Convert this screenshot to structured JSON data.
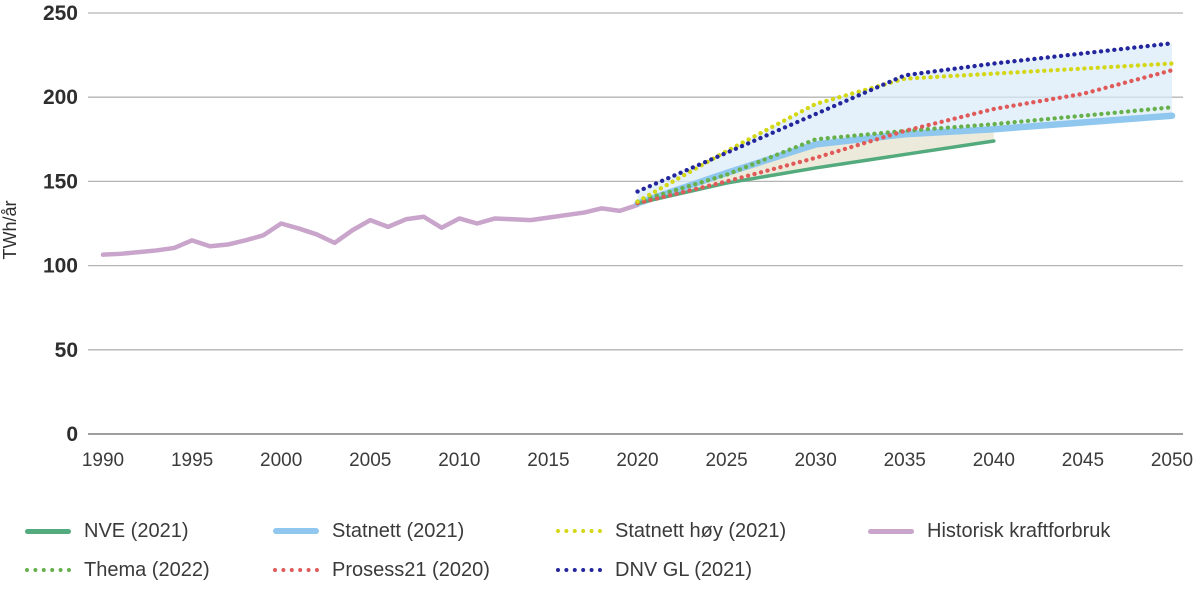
{
  "chart_data": {
    "type": "line",
    "title": "",
    "xlabel": "",
    "ylabel": "TWh/år",
    "xlim": [
      1990,
      2050
    ],
    "ylim": [
      0,
      250
    ],
    "xticks": [
      1990,
      1995,
      2000,
      2005,
      2010,
      2015,
      2020,
      2025,
      2030,
      2035,
      2040,
      2045,
      2050
    ],
    "yticks": [
      0,
      50,
      100,
      150,
      200,
      250
    ],
    "grid": "horizontal-only",
    "legend_position": "bottom",
    "series": [
      {
        "name": "Historisk kraftforbruk",
        "color": "#c9a4cb",
        "style": "solid",
        "width": 4.5,
        "x": [
          1990,
          1991,
          1992,
          1993,
          1994,
          1995,
          1996,
          1997,
          1998,
          1999,
          2000,
          2001,
          2002,
          2003,
          2004,
          2005,
          2006,
          2007,
          2008,
          2009,
          2010,
          2011,
          2012,
          2013,
          2014,
          2015,
          2016,
          2017,
          2018,
          2019,
          2020
        ],
        "values": [
          106.5,
          107,
          108,
          109,
          110.5,
          115,
          111.5,
          112.5,
          115,
          118,
          125,
          122,
          118.5,
          113.5,
          121,
          127,
          123,
          127.5,
          129,
          122.5,
          128,
          125,
          128,
          127.5,
          127,
          128.5,
          130,
          131.5,
          134,
          132.5,
          136
        ]
      },
      {
        "name": "Statnett (2021)",
        "color": "#8fc7ee",
        "style": "solid",
        "width": 6.5,
        "x": [
          2020,
          2025,
          2030,
          2035,
          2040,
          2045,
          2050
        ],
        "values": [
          137,
          155,
          172,
          178,
          181,
          185,
          189
        ]
      },
      {
        "name": "NVE (2021)",
        "color": "#53aa7c",
        "style": "solid",
        "width": 3.5,
        "x": [
          2020,
          2025,
          2030,
          2035,
          2040
        ],
        "values": [
          137,
          149,
          158,
          166,
          174
        ]
      },
      {
        "name": "Thema (2022)",
        "color": "#66b14b",
        "style": "dotted",
        "width": 4,
        "x": [
          2020,
          2025,
          2030,
          2035,
          2040,
          2045,
          2050
        ],
        "values": [
          138,
          154,
          175,
          180,
          184,
          189,
          194
        ]
      },
      {
        "name": "Prosess21 (2020)",
        "color": "#e05a5a",
        "style": "dotted",
        "width": 4,
        "x": [
          2020,
          2025,
          2030,
          2035,
          2040,
          2045,
          2050
        ],
        "values": [
          137,
          150,
          164,
          180,
          193,
          202,
          216
        ]
      },
      {
        "name": "Statnett høy (2021)",
        "color": "#d4d714",
        "style": "dotted",
        "width": 4,
        "x": [
          2020,
          2025,
          2030,
          2035,
          2040,
          2045,
          2050
        ],
        "values": [
          138,
          168,
          196,
          211,
          214,
          217,
          220
        ]
      },
      {
        "name": "DNV GL (2021)",
        "color": "#24269e",
        "style": "dotted",
        "width": 4,
        "x": [
          2020,
          2025,
          2030,
          2035,
          2040,
          2045,
          2050
        ],
        "values": [
          144,
          167,
          190,
          213,
          220,
          226,
          232
        ]
      }
    ],
    "bands": [
      {
        "name": "forecast-range-upper",
        "lower": "Statnett (2021)",
        "upper": [
          "Statnett høy (2021)",
          "DNV GL (2021)"
        ],
        "from": 2020,
        "to": 2050,
        "color": "#d9eaf8",
        "opacity": 0.7
      },
      {
        "name": "forecast-range-lower",
        "lower": "NVE (2021)",
        "upper": [
          "Statnett (2021)"
        ],
        "from": 2020,
        "to": 2040,
        "color": "#e7e6d2",
        "opacity": 0.8
      }
    ]
  }
}
